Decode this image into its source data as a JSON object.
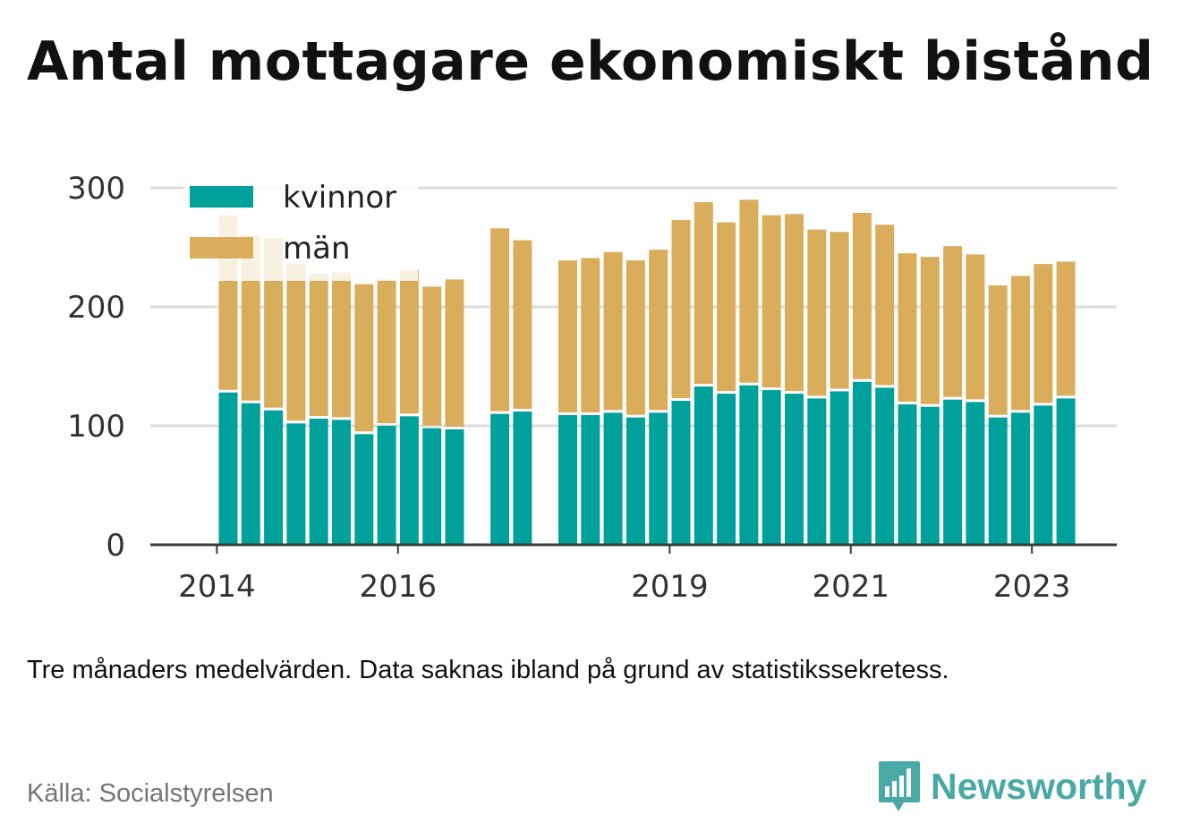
{
  "chart_data": {
    "type": "bar",
    "stacked": true,
    "title": "Antal mottagare ekonomiskt bistånd",
    "xlabel": "",
    "ylabel": "",
    "ylim": [
      0,
      300
    ],
    "yticks": [
      0,
      100,
      200,
      300
    ],
    "xtick_labels": [
      "2014",
      "2016",
      "2019",
      "2021",
      "2023"
    ],
    "grid": true,
    "legend_position": "top-left",
    "colors": {
      "kvinnor": "#00a19a",
      "män": "#d9ad5b"
    },
    "series": [
      {
        "name": "kvinnor",
        "values": [
          128,
          119,
          113,
          102,
          106,
          105,
          93,
          100,
          108,
          98,
          97,
          null,
          110,
          112,
          null,
          109,
          109,
          111,
          107,
          111,
          121,
          133,
          127,
          134,
          130,
          127,
          123,
          129,
          137,
          132,
          118,
          116,
          122,
          120,
          107,
          111,
          117,
          123
        ]
      },
      {
        "name": "män",
        "values": [
          149,
          141,
          145,
          134,
          122,
          124,
          126,
          123,
          123,
          119,
          126,
          null,
          156,
          144,
          null,
          130,
          132,
          135,
          132,
          137,
          152,
          155,
          144,
          156,
          147,
          151,
          142,
          134,
          142,
          137,
          127,
          126,
          129,
          124,
          111,
          115,
          119,
          115
        ]
      }
    ]
  },
  "note": "Tre månaders medelvärden. Data saknas ibland på grund av statistikssekretess.",
  "source": "Källa: Socialstyrelsen",
  "brand": {
    "name": "Newsworthy",
    "color": "#49a9a5",
    "icon": "newsworthy-logo-icon"
  }
}
